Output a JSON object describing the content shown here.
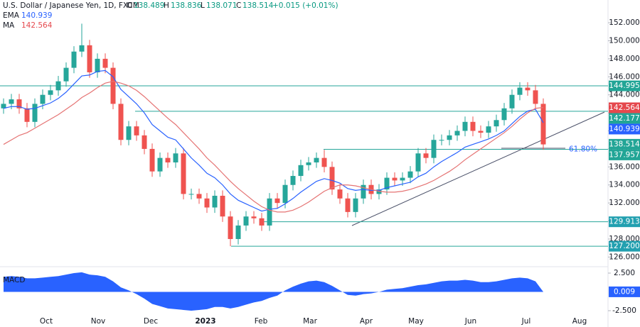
{
  "header": {
    "symbol": "U.S. Dollar / Japanese Yen, 1D, FXCM",
    "o_label": "O",
    "open": 138.489,
    "h_label": "H",
    "high": 138.836,
    "l_label": "L",
    "low": 138.071,
    "c_label": "C",
    "close": 138.514,
    "change": "+0.015 (+0.01%)",
    "ema_label": "EMA",
    "ema": 140.939,
    "ma_label": "MA",
    "ma": 142.564
  },
  "chart_data": [
    {
      "type": "candlestick",
      "up_color": "#26a69a",
      "down_color": "#ef5350",
      "open": [
        142.5,
        143.0,
        143.5,
        142.5,
        141.0,
        143.0,
        144.0,
        144.5,
        145.5,
        147.0,
        148.8,
        149.5,
        146.5,
        148.0,
        147.0,
        143.0,
        139.0,
        140.5,
        139.5,
        138.0,
        135.5,
        137.0,
        136.5,
        137.5,
        133.0,
        133.0,
        132.5,
        131.5,
        132.8,
        130.5,
        128.0,
        129.5,
        130.5,
        130.3,
        129.5,
        132.5,
        132.0,
        134.0,
        135.0,
        136.2,
        136.5,
        137.0,
        136.0,
        133.5,
        132.5,
        131.0,
        132.5,
        134.0,
        133.0,
        133.5,
        134.8,
        134.5,
        134.8,
        135.5,
        137.5,
        137.0,
        139.0,
        139.0,
        139.5,
        140.0,
        141.0,
        140.0,
        139.8,
        140.5,
        141.2,
        142.5,
        144.0,
        144.8,
        144.5,
        143.0
      ],
      "high": [
        143.6,
        144.1,
        144.1,
        143.1,
        143.6,
        144.6,
        145.1,
        146.1,
        147.6,
        149.4,
        151.9,
        150.1,
        148.6,
        148.6,
        147.6,
        143.6,
        141.1,
        141.1,
        140.1,
        138.6,
        137.6,
        137.6,
        138.1,
        138.1,
        133.6,
        133.6,
        133.1,
        133.4,
        133.4,
        131.1,
        130.1,
        131.1,
        131.1,
        130.9,
        133.1,
        133.1,
        134.6,
        135.6,
        136.8,
        137.1,
        137.6,
        137.9,
        136.6,
        134.1,
        133.1,
        133.1,
        134.6,
        134.6,
        134.1,
        135.4,
        135.4,
        135.4,
        136.1,
        138.1,
        138.1,
        139.6,
        139.6,
        140.1,
        140.6,
        141.6,
        141.6,
        140.6,
        141.1,
        141.8,
        143.1,
        144.6,
        145.4,
        145.4,
        145.1,
        143.6
      ],
      "low": [
        141.9,
        142.4,
        141.9,
        140.4,
        140.4,
        142.4,
        143.4,
        143.9,
        144.9,
        146.4,
        148.2,
        145.9,
        145.9,
        146.4,
        142.4,
        138.4,
        138.4,
        138.9,
        137.4,
        134.9,
        134.9,
        135.9,
        135.9,
        132.4,
        132.4,
        131.9,
        130.9,
        130.9,
        129.9,
        127.2,
        127.4,
        128.9,
        129.7,
        128.9,
        128.9,
        131.4,
        131.4,
        133.4,
        134.4,
        135.6,
        135.9,
        135.4,
        132.9,
        131.9,
        130.4,
        130.4,
        131.9,
        132.4,
        132.4,
        132.9,
        133.9,
        133.9,
        134.2,
        134.9,
        136.4,
        136.4,
        138.4,
        138.4,
        138.9,
        139.4,
        139.4,
        139.2,
        139.2,
        139.9,
        140.6,
        141.9,
        143.4,
        143.9,
        142.4,
        137.9
      ],
      "close": [
        143.0,
        143.5,
        142.5,
        141.0,
        143.0,
        144.0,
        144.5,
        145.5,
        147.0,
        148.8,
        149.5,
        146.5,
        148.0,
        147.0,
        143.0,
        139.0,
        140.5,
        139.5,
        138.0,
        135.5,
        137.0,
        136.5,
        137.5,
        133.0,
        133.0,
        132.5,
        131.5,
        132.8,
        130.5,
        128.0,
        129.5,
        130.5,
        130.3,
        129.5,
        132.5,
        132.0,
        134.0,
        135.0,
        136.2,
        136.5,
        137.0,
        136.0,
        133.5,
        132.5,
        131.0,
        132.5,
        134.0,
        133.0,
        133.5,
        134.8,
        134.5,
        134.8,
        135.5,
        137.5,
        137.0,
        139.0,
        139.0,
        139.5,
        140.0,
        141.0,
        140.0,
        139.8,
        140.5,
        141.2,
        142.5,
        144.0,
        144.8,
        144.5,
        143.0,
        138.5
      ],
      "series": [
        {
          "name": "EMA",
          "color": "#2962ff",
          "values": [
            142.5,
            142.7,
            142.7,
            142.4,
            142.5,
            142.8,
            143.1,
            143.6,
            144.3,
            145.2,
            146.1,
            146.2,
            146.6,
            146.7,
            146.0,
            144.6,
            143.8,
            143.0,
            142.0,
            140.7,
            140.0,
            139.3,
            139.0,
            138.0,
            137.0,
            136.2,
            135.3,
            134.8,
            134.0,
            133.0,
            132.3,
            131.9,
            131.5,
            131.1,
            131.3,
            131.4,
            131.9,
            132.5,
            133.2,
            133.8,
            134.4,
            134.7,
            134.5,
            134.2,
            133.6,
            133.4,
            133.5,
            133.4,
            133.4,
            133.7,
            133.9,
            134.1,
            134.3,
            134.9,
            135.3,
            136.0,
            136.6,
            137.1,
            137.6,
            138.2,
            138.5,
            138.8,
            139.1,
            139.5,
            140.0,
            140.8,
            141.6,
            142.2,
            142.4,
            140.9
          ]
        },
        {
          "name": "MA",
          "color": "#e57373",
          "values": [
            138.5,
            139.0,
            139.5,
            139.8,
            140.3,
            140.8,
            141.3,
            141.8,
            142.4,
            143.0,
            143.7,
            144.2,
            144.8,
            145.3,
            145.5,
            145.3,
            145.0,
            144.5,
            143.8,
            143.0,
            142.2,
            141.4,
            140.7,
            139.8,
            138.9,
            138.0,
            137.0,
            136.2,
            135.3,
            134.4,
            133.6,
            132.9,
            132.2,
            131.6,
            131.2,
            131.0,
            131.0,
            131.2,
            131.6,
            132.1,
            132.7,
            133.3,
            133.7,
            134.0,
            134.0,
            133.9,
            133.7,
            133.5,
            133.3,
            133.2,
            133.2,
            133.3,
            133.5,
            133.8,
            134.1,
            134.5,
            135.0,
            135.5,
            136.1,
            136.8,
            137.4,
            138.0,
            138.6,
            139.2,
            139.8,
            140.5,
            141.3,
            142.0,
            142.5,
            142.6
          ]
        }
      ],
      "levels": [
        {
          "value": 144.995,
          "label": "144.995"
        },
        {
          "value": 142.177,
          "label": "142.177"
        },
        {
          "value": 137.957,
          "label": "137.957"
        },
        {
          "value": 129.913,
          "label": "129.913"
        },
        {
          "value": 127.2,
          "label": "127.200"
        }
      ],
      "level_color": "#26a69a",
      "tags": [
        {
          "value": 144.995,
          "label": "144.995",
          "color": "#22a596"
        },
        {
          "value": 142.564,
          "label": "142.564",
          "color": "#e5484d"
        },
        {
          "value": 142.177,
          "label": "142.177",
          "color": "#22a596"
        },
        {
          "value": 140.939,
          "label": "140.939",
          "color": "#2962ff"
        },
        {
          "value": 138.514,
          "label": "138.514",
          "color": "#22a596"
        },
        {
          "value": 137.957,
          "label": "137.957",
          "color": "#22a596"
        },
        {
          "value": 129.913,
          "label": "129.913",
          "color": "#22a0b0"
        },
        {
          "value": 127.2,
          "label": "127.200",
          "color": "#22a0b0"
        }
      ],
      "annotation": "61.80%",
      "xticks": [
        "Oct",
        "Nov",
        "Dec",
        "2023",
        "Feb",
        "Mar",
        "Apr",
        "May",
        "Jun",
        "Jul",
        "Aug"
      ],
      "ylim": [
        125.4,
        152.95
      ],
      "yticks": [
        {
          "value": 126,
          "label": "126.000"
        },
        {
          "value": 128,
          "label": "128.000"
        },
        {
          "value": 130,
          "label": "130.000"
        },
        {
          "value": 132,
          "label": "132.000"
        },
        {
          "value": 134,
          "label": "134.000"
        },
        {
          "value": 136,
          "label": "136.000"
        },
        {
          "value": 138,
          "label": "138.000"
        },
        {
          "value": 140,
          "label": "140.000"
        },
        {
          "value": 142,
          "label": "142.000"
        },
        {
          "value": 144,
          "label": "144.000"
        },
        {
          "value": 146,
          "label": "146.000"
        },
        {
          "value": 148,
          "label": "148.000"
        },
        {
          "value": 150,
          "label": "150.000"
        },
        {
          "value": 152,
          "label": "152.000"
        }
      ]
    },
    {
      "type": "area",
      "title": "MACD",
      "color": "#2962ff",
      "values": [
        2.0,
        2.1,
        2.0,
        1.8,
        1.8,
        1.9,
        2.0,
        2.1,
        2.3,
        2.5,
        2.6,
        2.3,
        2.2,
        2.0,
        1.4,
        0.6,
        0.2,
        -0.3,
        -0.9,
        -1.6,
        -1.9,
        -2.2,
        -2.3,
        -2.4,
        -2.5,
        -2.4,
        -2.3,
        -2.0,
        -2.0,
        -2.2,
        -2.0,
        -1.7,
        -1.4,
        -1.2,
        -0.8,
        -0.5,
        0.2,
        0.7,
        1.1,
        1.4,
        1.5,
        1.3,
        0.8,
        0.2,
        -0.4,
        -0.5,
        -0.3,
        -0.2,
        0.0,
        0.3,
        0.4,
        0.5,
        0.7,
        0.9,
        1.0,
        1.2,
        1.4,
        1.5,
        1.5,
        1.6,
        1.5,
        1.3,
        1.3,
        1.4,
        1.6,
        1.8,
        1.9,
        1.8,
        1.4,
        0.009
      ],
      "tag": {
        "value": 0.009,
        "label": "0.009",
        "color": "#2962ff"
      },
      "ylim": [
        -3.16,
        3.16
      ],
      "yticks": [
        {
          "value": 2.5,
          "label": "2.500"
        },
        {
          "value": -2.5,
          "label": "-2.500"
        }
      ]
    }
  ]
}
